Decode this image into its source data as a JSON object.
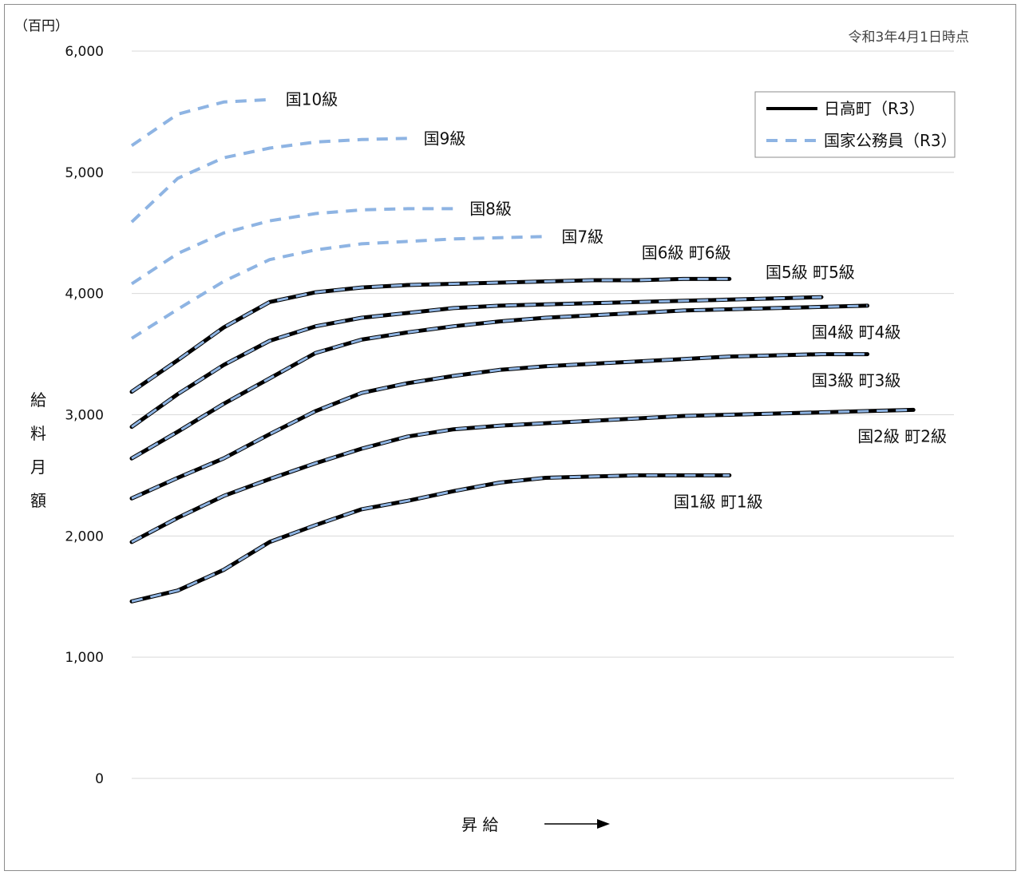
{
  "chart_data": {
    "type": "line",
    "unit_label": "（百円）",
    "date_note": "令和3年4月1日時点",
    "ylabel": "給料月額",
    "xlabel": "昇 給",
    "ylim": [
      0,
      6000
    ],
    "yticks": [
      0,
      1000,
      2000,
      3000,
      4000,
      5000,
      6000
    ],
    "ytick_labels": [
      "0",
      "1,000",
      "2,000",
      "3,000",
      "4,000",
      "5,000",
      "6,000"
    ],
    "grid": true,
    "legend_position": "top-right",
    "legend": [
      {
        "label": "日高町（R3）",
        "style": "solid",
        "color": "#000000"
      },
      {
        "label": "国家公務員（R3）",
        "style": "dashed",
        "color": "#8eb4e3"
      }
    ],
    "series": [
      {
        "label": "国1級 町1級",
        "town": true,
        "x": [
          0,
          1,
          2,
          3,
          4,
          5,
          6,
          7,
          8,
          9,
          10,
          11,
          12,
          13
        ],
        "values": [
          1460,
          1550,
          1720,
          1950,
          2090,
          2220,
          2290,
          2370,
          2440,
          2480,
          2490,
          2500,
          2500,
          2500
        ]
      },
      {
        "label": "国2級 町2級",
        "town": true,
        "x": [
          0,
          1,
          2,
          3,
          4,
          5,
          6,
          7,
          8,
          9,
          10,
          11,
          12,
          13,
          14,
          15,
          16,
          17
        ],
        "values": [
          1950,
          2150,
          2330,
          2470,
          2600,
          2720,
          2820,
          2880,
          2910,
          2930,
          2950,
          2970,
          2990,
          3000,
          3010,
          3020,
          3030,
          3040
        ]
      },
      {
        "label": "国3級 町3級",
        "town": true,
        "x": [
          0,
          1,
          2,
          3,
          4,
          5,
          6,
          7,
          8,
          9,
          10,
          11,
          12,
          13,
          14,
          15,
          16
        ],
        "values": [
          2310,
          2480,
          2640,
          2840,
          3030,
          3180,
          3260,
          3320,
          3370,
          3400,
          3420,
          3440,
          3460,
          3480,
          3490,
          3500,
          3500
        ]
      },
      {
        "label": "国4級 町4級",
        "town": true,
        "x": [
          0,
          1,
          2,
          3,
          4,
          5,
          6,
          7,
          8,
          9,
          10,
          11,
          12,
          13,
          14,
          15,
          16
        ],
        "values": [
          2640,
          2860,
          3090,
          3300,
          3510,
          3620,
          3680,
          3730,
          3770,
          3800,
          3820,
          3840,
          3860,
          3870,
          3880,
          3890,
          3900
        ]
      },
      {
        "label": "国5級 町5級",
        "town": true,
        "x": [
          0,
          1,
          2,
          3,
          4,
          5,
          6,
          7,
          8,
          9,
          10,
          11,
          12,
          13,
          14,
          15
        ],
        "values": [
          2900,
          3170,
          3410,
          3610,
          3730,
          3800,
          3840,
          3880,
          3900,
          3910,
          3920,
          3930,
          3940,
          3950,
          3960,
          3970
        ]
      },
      {
        "label": "国6級 町6級",
        "town": true,
        "x": [
          0,
          1,
          2,
          3,
          4,
          5,
          6,
          7,
          8,
          9,
          10,
          11,
          12,
          13
        ],
        "values": [
          3190,
          3450,
          3720,
          3930,
          4010,
          4050,
          4070,
          4080,
          4090,
          4100,
          4110,
          4110,
          4120,
          4120
        ]
      },
      {
        "label": "国7級",
        "town": false,
        "x": [
          0,
          1,
          2,
          3,
          4,
          5,
          6,
          7,
          8,
          9
        ],
        "values": [
          3630,
          3870,
          4100,
          4280,
          4360,
          4410,
          4430,
          4450,
          4460,
          4470
        ]
      },
      {
        "label": "国8級",
        "town": false,
        "x": [
          0,
          1,
          2,
          3,
          4,
          5,
          6,
          7
        ],
        "values": [
          4080,
          4330,
          4500,
          4600,
          4660,
          4690,
          4700,
          4700
        ]
      },
      {
        "label": "国9級",
        "town": false,
        "x": [
          0,
          1,
          2,
          3,
          4,
          5,
          6
        ],
        "values": [
          4590,
          4950,
          5120,
          5200,
          5250,
          5270,
          5280
        ]
      },
      {
        "label": "国10級",
        "town": false,
        "x": [
          0,
          1,
          2,
          3
        ],
        "values": [
          5220,
          5480,
          5580,
          5600
        ]
      }
    ]
  }
}
